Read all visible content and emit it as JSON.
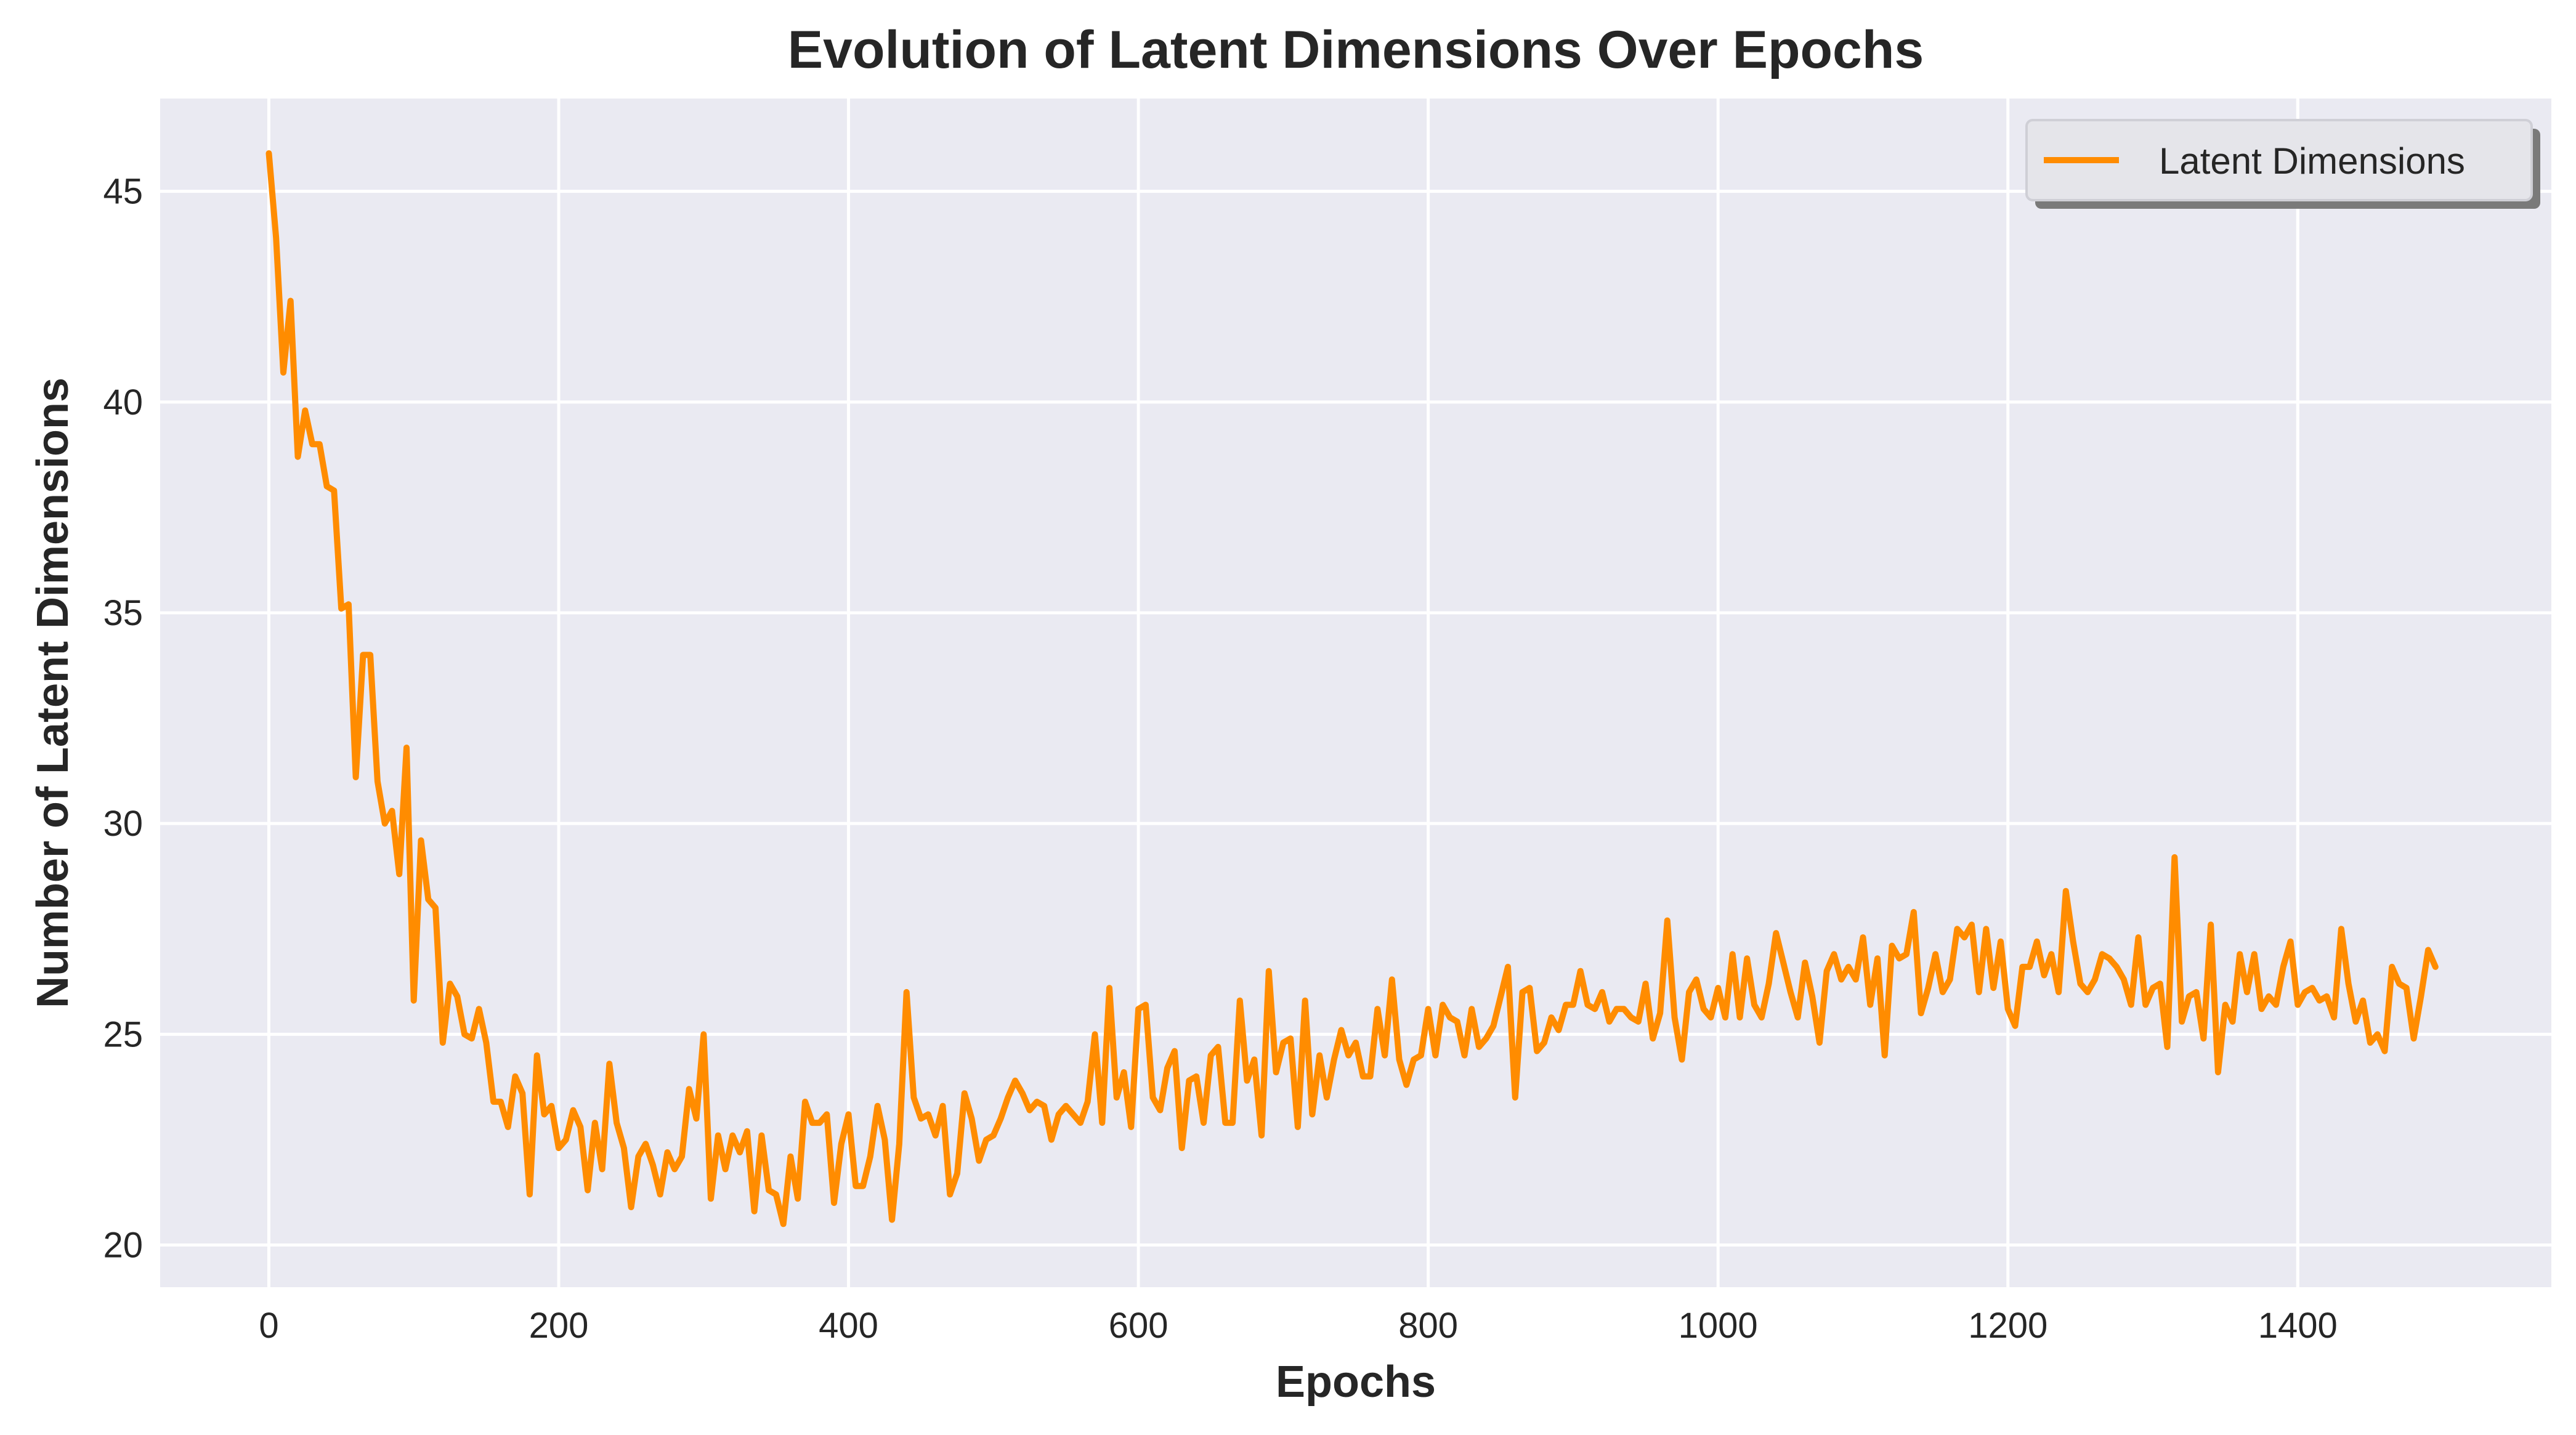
{
  "colors": {
    "series": "#ff8c00",
    "plot_background": "#eaeaf2",
    "grid": "#ffffff",
    "text": "#262626"
  },
  "chart_data": {
    "type": "line",
    "title": "Evolution of Latent Dimensions Over Epochs",
    "xlabel": "Epochs",
    "ylabel": "Number of Latent Dimensions",
    "xlim": [
      -75,
      1575
    ],
    "ylim": [
      19.0,
      47.2
    ],
    "xticks": [
      0,
      200,
      400,
      600,
      800,
      1000,
      1200,
      1400
    ],
    "xtick_labels": [
      "0",
      "200",
      "400",
      "600",
      "800",
      "1000",
      "1200",
      "1400"
    ],
    "yticks": [
      20,
      25,
      30,
      35,
      40,
      45
    ],
    "ytick_labels": [
      "20",
      "25",
      "30",
      "35",
      "40",
      "45"
    ],
    "grid": true,
    "legend_position": "top-right",
    "series": [
      {
        "name": "Latent Dimensions",
        "color": "#ff8c00",
        "x_start": 0,
        "x_step": 5,
        "values": [
          45.9,
          43.9,
          40.7,
          42.4,
          38.7,
          39.8,
          39.0,
          39.0,
          38.0,
          37.9,
          35.1,
          35.2,
          31.1,
          34.0,
          34.0,
          31.0,
          30.0,
          30.3,
          28.8,
          31.8,
          25.8,
          29.6,
          28.2,
          28.0,
          24.8,
          26.2,
          25.9,
          25.0,
          24.9,
          25.6,
          24.8,
          23.4,
          23.4,
          22.8,
          24.0,
          23.6,
          21.2,
          24.5,
          23.1,
          23.3,
          22.3,
          22.5,
          23.2,
          22.8,
          21.3,
          22.9,
          21.8,
          24.3,
          22.9,
          22.3,
          20.9,
          22.1,
          22.4,
          21.9,
          21.2,
          22.2,
          21.8,
          22.1,
          23.7,
          23.0,
          25.0,
          21.1,
          22.6,
          21.8,
          22.6,
          22.2,
          22.7,
          20.8,
          22.6,
          21.3,
          21.2,
          20.5,
          22.1,
          21.1,
          23.4,
          22.9,
          22.9,
          23.1,
          21.0,
          22.4,
          23.1,
          21.4,
          21.4,
          22.1,
          23.3,
          22.5,
          20.6,
          22.4,
          26.0,
          23.5,
          23.0,
          23.1,
          22.6,
          23.3,
          21.2,
          21.7,
          23.6,
          23.0,
          22.0,
          22.5,
          22.6,
          23.0,
          23.5,
          23.9,
          23.6,
          23.2,
          23.4,
          23.3,
          22.5,
          23.1,
          23.3,
          23.1,
          22.9,
          23.4,
          25.0,
          22.9,
          26.1,
          23.5,
          24.1,
          22.8,
          25.6,
          25.7,
          23.5,
          23.2,
          24.2,
          24.6,
          22.3,
          23.9,
          24.0,
          22.9,
          24.5,
          24.7,
          22.9,
          22.9,
          25.8,
          23.9,
          24.4,
          22.6,
          26.5,
          24.1,
          24.8,
          24.9,
          22.8,
          25.8,
          23.1,
          24.5,
          23.5,
          24.4,
          25.1,
          24.5,
          24.8,
          24.0,
          24.0,
          25.6,
          24.5,
          26.3,
          24.4,
          23.8,
          24.4,
          24.5,
          25.6,
          24.5,
          25.7,
          25.4,
          25.3,
          24.5,
          25.6,
          24.7,
          24.9,
          25.2,
          25.9,
          26.6,
          23.5,
          26.0,
          26.1,
          24.6,
          24.8,
          25.4,
          25.1,
          25.7,
          25.7,
          26.5,
          25.7,
          25.6,
          26.0,
          25.3,
          25.6,
          25.6,
          25.4,
          25.3,
          26.2,
          24.9,
          25.5,
          27.7,
          25.4,
          24.4,
          26.0,
          26.3,
          25.6,
          25.4,
          26.1,
          25.4,
          26.9,
          25.4,
          26.8,
          25.7,
          25.4,
          26.2,
          27.4,
          26.7,
          26.0,
          25.4,
          26.7,
          25.9,
          24.8,
          26.5,
          26.9,
          26.3,
          26.6,
          26.3,
          27.3,
          25.7,
          26.8,
          24.5,
          27.1,
          26.8,
          26.9,
          27.9,
          25.5,
          26.1,
          26.9,
          26.0,
          26.3,
          27.5,
          27.3,
          27.6,
          26.0,
          27.5,
          26.1,
          27.2,
          25.6,
          25.2,
          26.6,
          26.6,
          27.2,
          26.4,
          26.9,
          26.0,
          28.4,
          27.2,
          26.2,
          26.0,
          26.3,
          26.9,
          26.8,
          26.6,
          26.3,
          25.7,
          27.3,
          25.7,
          26.1,
          26.2,
          24.7,
          29.2,
          25.3,
          25.9,
          26.0,
          24.9,
          27.6,
          24.1,
          25.7,
          25.3,
          26.9,
          26.0,
          26.9,
          25.6,
          25.9,
          25.7,
          26.6,
          27.2,
          25.7,
          26.0,
          26.1,
          25.8,
          25.9,
          25.4,
          27.5,
          26.2,
          25.3,
          25.8,
          24.8,
          25.0,
          24.6,
          26.6,
          26.2,
          26.1,
          24.9,
          25.9,
          27.0,
          26.6
        ]
      }
    ]
  }
}
